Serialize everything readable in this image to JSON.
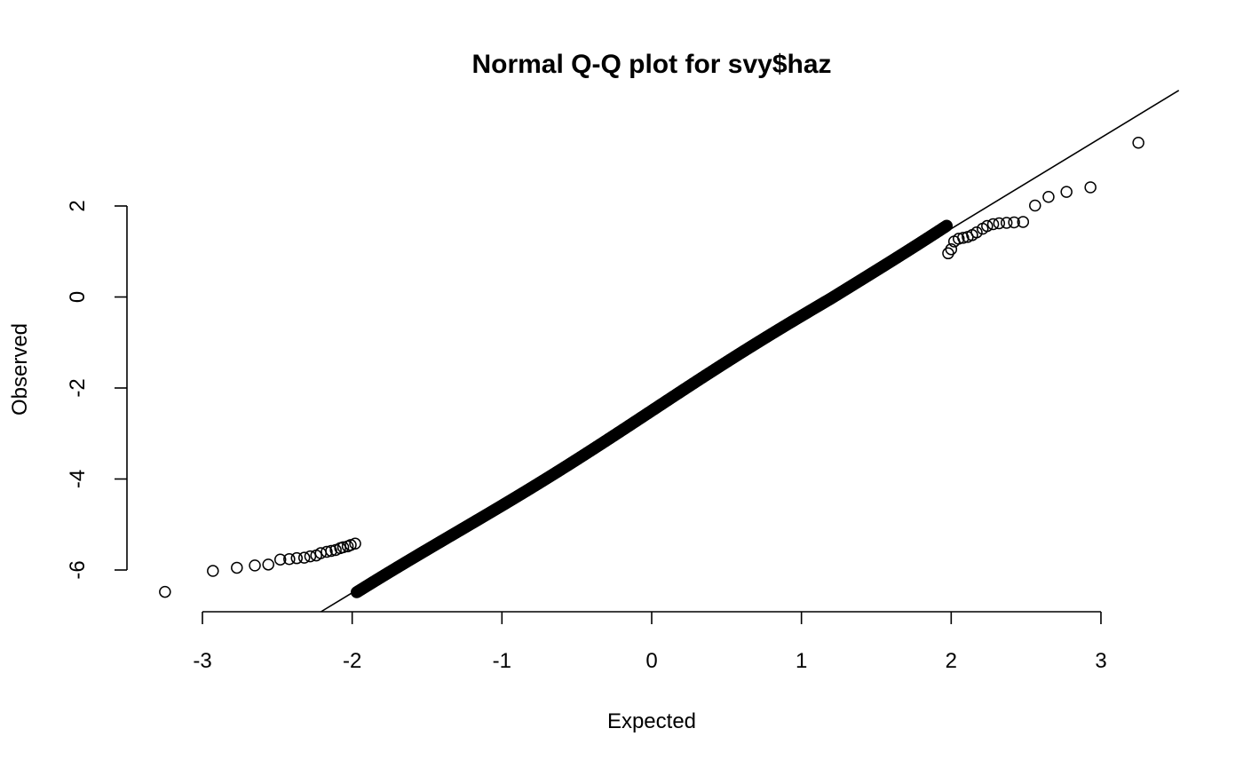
{
  "chart_data": {
    "type": "scatter",
    "title": "Normal Q-Q plot for svy$haz",
    "xlabel": "Expected",
    "ylabel": "Observed",
    "xlim": [
      -3.05,
      3.05
    ],
    "ylim": [
      -6.9,
      3.5
    ],
    "x_ticks": [
      -3,
      -2,
      -1,
      0,
      1,
      2,
      3
    ],
    "x_tick_labels": [
      "-3",
      "-2",
      "-1",
      "0",
      "1",
      "2",
      "3"
    ],
    "y_ticks": [
      -6,
      -4,
      -2,
      0,
      2
    ],
    "y_tick_labels": [
      "-6",
      "-4",
      "-2",
      "0",
      "2"
    ],
    "grid": false,
    "legend": "none",
    "reference_line": {
      "slope": 2.0,
      "intercept": -2.5
    },
    "series": [
      {
        "marker": "open-circle",
        "color": "#000000",
        "points": [
          [
            -3.25,
            -6.48
          ],
          [
            -2.93,
            -6.02
          ],
          [
            -2.77,
            -5.95
          ],
          [
            -2.65,
            -5.9
          ],
          [
            -2.56,
            -5.88
          ],
          [
            -2.48,
            -5.77
          ],
          [
            -2.42,
            -5.76
          ],
          [
            -2.37,
            -5.74
          ],
          [
            -2.32,
            -5.73
          ],
          [
            -2.28,
            -5.7
          ],
          [
            -2.24,
            -5.68
          ],
          [
            -2.21,
            -5.63
          ],
          [
            -2.17,
            -5.6
          ],
          [
            -2.14,
            -5.58
          ],
          [
            -2.11,
            -5.56
          ],
          [
            -2.08,
            -5.52
          ],
          [
            -2.06,
            -5.5
          ],
          [
            -2.03,
            -5.48
          ],
          [
            -2.01,
            -5.45
          ],
          [
            -1.98,
            -5.42
          ],
          [
            1.98,
            0.96
          ],
          [
            2.0,
            1.05
          ],
          [
            2.02,
            1.22
          ],
          [
            2.05,
            1.28
          ],
          [
            2.08,
            1.3
          ],
          [
            2.11,
            1.32
          ],
          [
            2.14,
            1.36
          ],
          [
            2.17,
            1.42
          ],
          [
            2.21,
            1.5
          ],
          [
            2.24,
            1.56
          ],
          [
            2.28,
            1.6
          ],
          [
            2.32,
            1.62
          ],
          [
            2.37,
            1.63
          ],
          [
            2.42,
            1.64
          ],
          [
            2.48,
            1.65
          ],
          [
            2.56,
            2.01
          ],
          [
            2.65,
            2.2
          ],
          [
            2.77,
            2.31
          ],
          [
            2.93,
            2.41
          ],
          [
            3.25,
            3.39
          ]
        ]
      }
    ]
  }
}
